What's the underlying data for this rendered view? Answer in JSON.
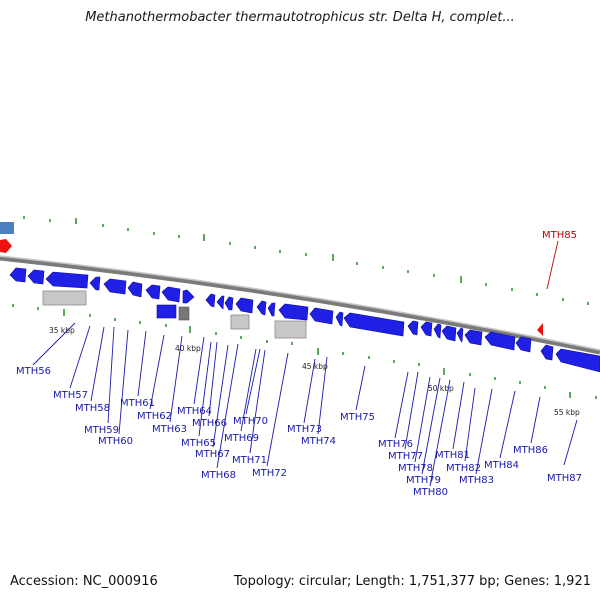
{
  "title": "Methanothermobacter thermautotrophicus str. Delta H, complet...",
  "footer": {
    "accession": "Accession: NC_000916",
    "summary": "Topology: circular; Length: 1,751,377 bp; Genes: 1,921"
  },
  "colors": {
    "gene_forward": "#1f1fe6",
    "gene_reverse": "#ee1111",
    "backbone": "#8a8a8a",
    "tick": "#2a8a2a",
    "label": "#1a1aa8",
    "label_red": "#c00000",
    "grey_feature": "#bdbdbd"
  },
  "scale_labels": [
    "35 kbp",
    "40 kbp",
    "45 kbp",
    "50 kbp",
    "55 kbp"
  ],
  "gene_labels": [
    "MTH56",
    "MTH57",
    "MTH58",
    "MTH59",
    "MTH60",
    "MTH61",
    "MTH62",
    "MTH63",
    "MTH64",
    "MTH65",
    "MTH66",
    "MTH67",
    "MTH68",
    "MTH69",
    "MTH70",
    "MTH71",
    "MTH72",
    "MTH73",
    "MTH74",
    "MTH75",
    "MTH76",
    "MTH77",
    "MTH78",
    "MTH79",
    "MTH80",
    "MTH81",
    "MTH82",
    "MTH83",
    "MTH84",
    "MTH85",
    "MTH86",
    "MTH87"
  ]
}
